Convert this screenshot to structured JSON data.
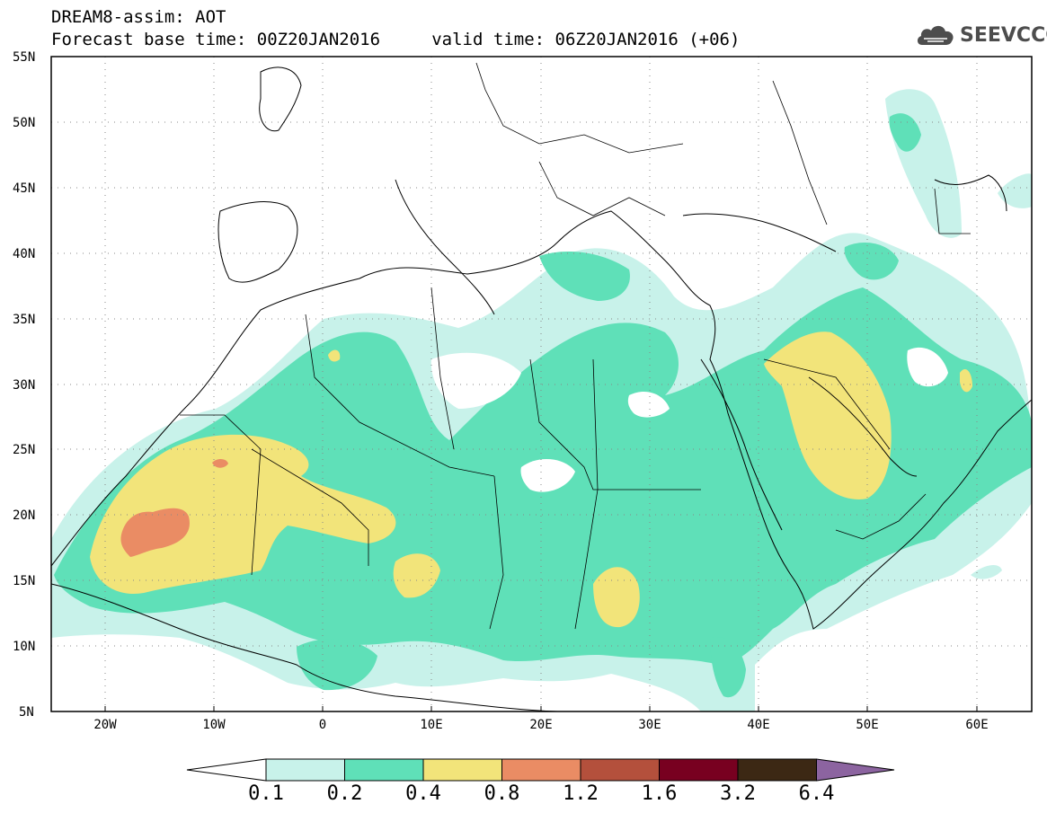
{
  "header": {
    "title": "DREAM8-assim: AOT",
    "forecast_line": "Forecast base time: 00Z20JAN2016     valid time: 06Z20JAN2016 (+06)"
  },
  "brand": {
    "name": "SEEVCCC",
    "icon": "cloud-icon"
  },
  "map": {
    "lat_labels": [
      "55N",
      "50N",
      "45N",
      "40N",
      "35N",
      "30N",
      "25N",
      "20N",
      "15N",
      "10N",
      "5N"
    ],
    "lon_labels": [
      "20W",
      "10W",
      "0",
      "10E",
      "20E",
      "30E",
      "40E",
      "50E",
      "60E"
    ],
    "lon_range": [
      -25,
      65
    ],
    "lat_range": [
      5,
      55
    ],
    "grid": "dotted"
  },
  "legend": {
    "levels": [
      "0.1",
      "0.2",
      "0.4",
      "0.8",
      "1.2",
      "1.6",
      "3.2",
      "6.4"
    ],
    "colors": [
      "#c8f2ea",
      "#5fe0b8",
      "#f2e47a",
      "#ea8c64",
      "#b4503c",
      "#780020",
      "#3c2814",
      "#8c64a0"
    ],
    "below_color": "#ffffff"
  }
}
